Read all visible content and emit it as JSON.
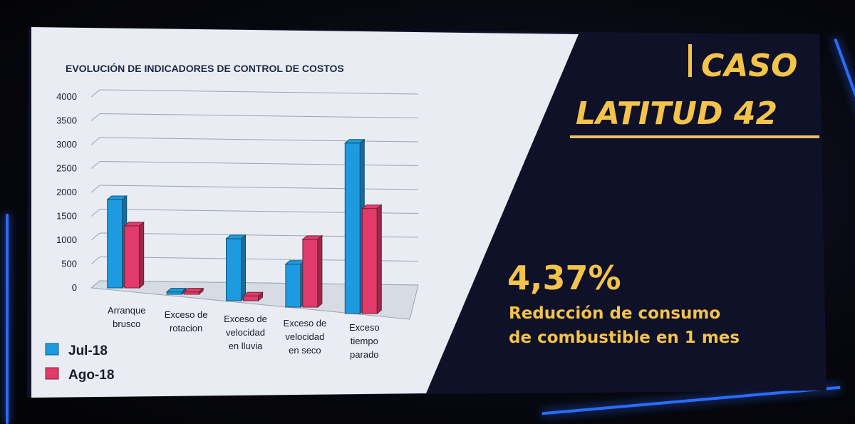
{
  "slide": {
    "case_line1": "CASO",
    "case_line2": "LATITUD 42",
    "percentage": "4,37%",
    "subtitle_line1": "Reducción de consumo",
    "subtitle_line2": "de combustible en 1 mes",
    "accent_color": "#f3c34a",
    "panel_color": "#0f1128"
  },
  "chart_data": {
    "type": "bar",
    "title": "EVOLUCIÓN DE INDICADORES DE CONTROL DE COSTOS",
    "categories": [
      [
        "Arranque",
        "brusco"
      ],
      [
        "Exceso de",
        "rotacion"
      ],
      [
        "Exceso de",
        "velocidad",
        "en lluvia"
      ],
      [
        "Exceso de",
        "velocidad",
        "en seco"
      ],
      [
        "Exceso",
        "tiempo",
        "parado"
      ]
    ],
    "series": [
      {
        "name": "Jul-18",
        "color": "#1e9be0",
        "values": [
          1850,
          50,
          1300,
          900,
          3570
        ]
      },
      {
        "name": "Ago-18",
        "color": "#e03b6a",
        "values": [
          1300,
          50,
          100,
          1420,
          2200
        ]
      }
    ],
    "ylim": [
      0,
      4000
    ],
    "yticks": [
      "0",
      "500",
      "1000",
      "1500",
      "2000",
      "2500",
      "3000",
      "3500",
      "4000"
    ],
    "grid": true,
    "legend": "bottom-left",
    "xlabel": "",
    "ylabel": ""
  }
}
